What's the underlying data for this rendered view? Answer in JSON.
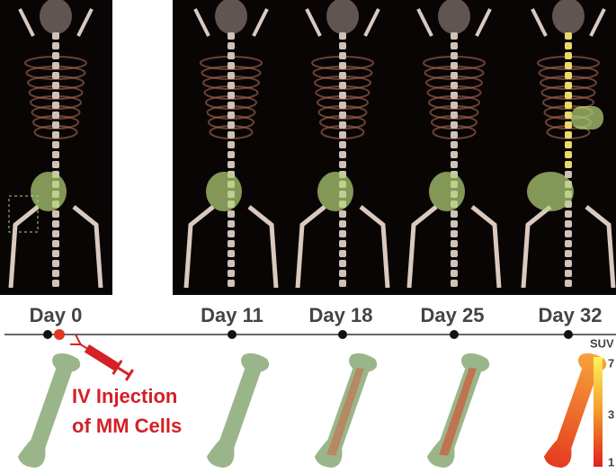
{
  "timeline": {
    "days": [
      "Day 0",
      "Day 11",
      "Day 18",
      "Day 25",
      "Day 32"
    ]
  },
  "annotation": {
    "line1": "IV Injection",
    "line2": "of MM Cells"
  },
  "colorbar": {
    "title": "SUV",
    "ticks": [
      "7",
      "3",
      "1"
    ]
  }
}
